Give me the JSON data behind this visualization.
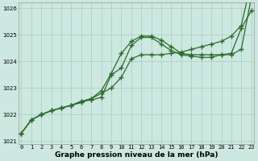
{
  "xlabel": "Graphe pression niveau de la mer (hPa)",
  "hours": [
    0,
    1,
    2,
    3,
    4,
    5,
    6,
    7,
    8,
    9,
    10,
    11,
    12,
    13,
    14,
    15,
    16,
    17,
    18,
    19,
    20,
    21,
    22,
    23
  ],
  "line1": [
    1021.3,
    1021.8,
    1022.0,
    1022.15,
    1022.25,
    1022.35,
    1022.45,
    1022.6,
    1022.8,
    1023.0,
    1023.4,
    1024.1,
    1024.25,
    1024.25,
    1024.25,
    1024.3,
    1024.35,
    1024.45,
    1024.55,
    1024.65,
    1024.75,
    1024.95,
    1025.35,
    1027.0
  ],
  "line2": [
    1021.3,
    1021.8,
    1022.0,
    1022.15,
    1022.25,
    1022.35,
    1022.5,
    1022.6,
    1022.9,
    1023.55,
    1024.3,
    1024.75,
    1024.95,
    1024.95,
    1024.8,
    1024.55,
    1024.3,
    1024.25,
    1024.25,
    1024.25,
    1024.25,
    1024.3,
    1025.25,
    1025.9
  ],
  "line3": [
    1021.3,
    1021.8,
    1022.0,
    1022.15,
    1022.25,
    1022.35,
    1022.5,
    1022.55,
    1022.65,
    1023.5,
    1023.75,
    1024.6,
    1024.9,
    1024.9,
    1024.65,
    1024.4,
    1024.25,
    1024.2,
    1024.15,
    1024.15,
    1024.25,
    1024.25,
    1024.45,
    1026.4
  ],
  "ylim": [
    1020.9,
    1026.2
  ],
  "yticks": [
    1021,
    1022,
    1023,
    1024,
    1025,
    1026
  ],
  "xtick_labels": [
    "0",
    "1",
    "2",
    "3",
    "4",
    "5",
    "6",
    "7",
    "8",
    "9",
    "10",
    "11",
    "12",
    "13",
    "14",
    "15",
    "16",
    "17",
    "18",
    "19",
    "20",
    "21",
    "22",
    "23"
  ],
  "bg_color": "#cce8e0",
  "line_color": "#2d6a2d",
  "grid_color": "#aaccbb",
  "marker": "+",
  "linewidth": 0.9,
  "markersize": 4,
  "markeredgewidth": 1.0,
  "xlabel_fontsize": 6.5,
  "tick_fontsize": 5.0
}
